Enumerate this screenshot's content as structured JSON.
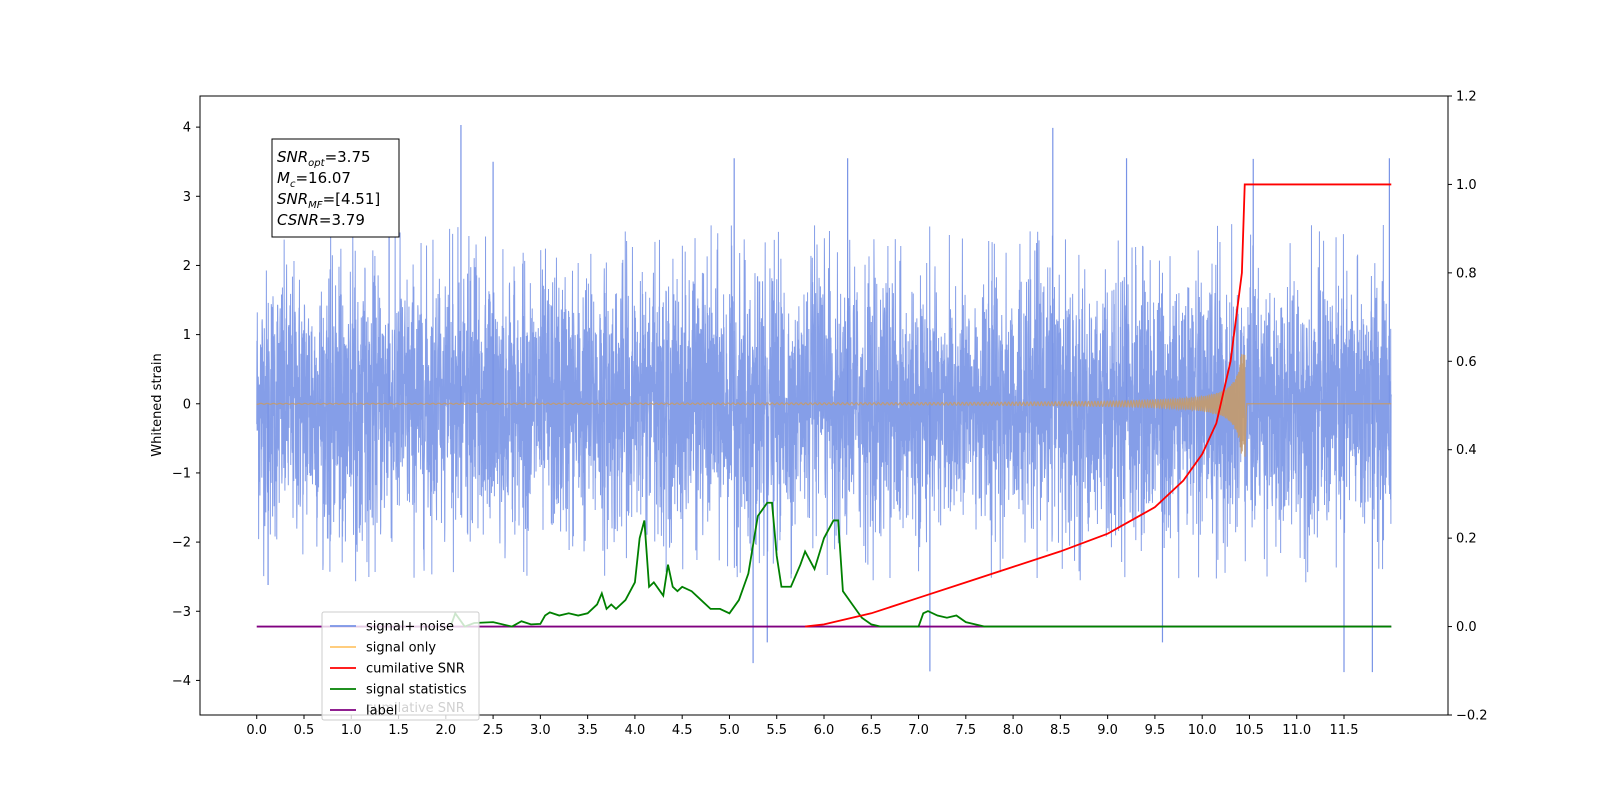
{
  "chart_data": {
    "type": "line",
    "title": "",
    "ylabel": "Whitened strain",
    "xlim": [
      -0.6,
      12.6
    ],
    "ylim": [
      -4.5,
      4.45
    ],
    "y2lim": [
      -0.2,
      1.2
    ],
    "x_ticks": [
      "0.0",
      "0.5",
      "1.0",
      "1.5",
      "2.0",
      "2.5",
      "3.0",
      "3.5",
      "4.0",
      "4.5",
      "5.0",
      "5.5",
      "6.0",
      "6.5",
      "7.0",
      "7.5",
      "8.0",
      "8.5",
      "9.0",
      "9.5",
      "10.0",
      "10.5",
      "11.0",
      "11.5"
    ],
    "x_tick_values": [
      0,
      0.5,
      1,
      1.5,
      2,
      2.5,
      3,
      3.5,
      4,
      4.5,
      5,
      5.5,
      6,
      6.5,
      7,
      7.5,
      8,
      8.5,
      9,
      9.5,
      10,
      10.5,
      11,
      11.5
    ],
    "y_ticks": [
      "4",
      "3",
      "2",
      "1",
      "0",
      "−1",
      "−2",
      "−3",
      "−4"
    ],
    "y_tick_values": [
      4,
      3,
      2,
      1,
      0,
      -1,
      -2,
      -3,
      -4
    ],
    "y2_ticks": [
      "1.2",
      "1.0",
      "0.8",
      "0.6",
      "0.4",
      "0.2",
      "0.0",
      "−0.2"
    ],
    "y2_tick_values": [
      1.2,
      1.0,
      0.8,
      0.6,
      0.4,
      0.2,
      0.0,
      -0.2
    ],
    "grid": false,
    "legend_position": "bottom-left",
    "annotation": {
      "lines": [
        {
          "name": "SNR",
          "sub": "opt",
          "value": "=3.75"
        },
        {
          "name": "M",
          "sub": "c",
          "value": "=16.07"
        },
        {
          "name": "SNR",
          "sub": "MF",
          "value": "=[4.51]"
        },
        {
          "name": "CSNR",
          "sub": "",
          "value": "=3.79"
        }
      ]
    },
    "legend": [
      {
        "label": "signal+ noise",
        "color": "#7893e6"
      },
      {
        "label": "signal only",
        "color": "#ffc66b"
      },
      {
        "label": "cumilative SNR",
        "color": "#ff0000"
      },
      {
        "label": "signal statistics",
        "color": "#008000"
      },
      {
        "label": "label",
        "color": "#800080"
      }
    ],
    "legend_hidden_text": "cumilative SNR",
    "series": [
      {
        "name": "signal+ noise",
        "color": "#7893e6",
        "x_range": [
          0,
          12
        ],
        "envelope": [
          -2.6,
          2.6
        ],
        "outliers": [
          {
            "x": 2.16,
            "y": 4.03
          },
          {
            "x": 8.42,
            "y": 3.99
          },
          {
            "x": 10.54,
            "y": 3.54
          },
          {
            "x": 5.25,
            "y": -3.75
          },
          {
            "x": 7.12,
            "y": -3.87
          },
          {
            "x": 11.5,
            "y": -3.88
          },
          {
            "x": 11.8,
            "y": -3.88
          },
          {
            "x": 9.58,
            "y": -3.45
          },
          {
            "x": 5.4,
            "y": -3.45
          },
          {
            "x": 0.12,
            "y": -2.62
          },
          {
            "x": 1.4,
            "y": 3.3
          },
          {
            "x": 2.5,
            "y": 3.5
          },
          {
            "x": 5.05,
            "y": 3.55
          },
          {
            "x": 6.25,
            "y": 3.55
          },
          {
            "x": 9.2,
            "y": 3.55
          },
          {
            "x": 11.98,
            "y": 3.55
          }
        ]
      },
      {
        "name": "signal only",
        "color": "#c49a6c",
        "x_range": [
          0,
          12
        ],
        "merger_x": 10.45,
        "peak_amplitude": 0.72
      },
      {
        "name": "cumilative SNR",
        "color": "#ff0000",
        "axis": "right",
        "x": [
          5.8,
          6.0,
          6.5,
          7.0,
          7.5,
          8.0,
          8.5,
          9.0,
          9.5,
          9.8,
          10.0,
          10.15,
          10.3,
          10.42,
          10.45,
          10.5,
          12.0
        ],
        "y": [
          0.0,
          0.005,
          0.03,
          0.065,
          0.1,
          0.135,
          0.17,
          0.21,
          0.27,
          0.33,
          0.39,
          0.46,
          0.6,
          0.8,
          1.0,
          1.0,
          1.0
        ]
      },
      {
        "name": "signal statistics",
        "color": "#008000",
        "axis": "right",
        "x": [
          2.05,
          2.1,
          2.2,
          2.3,
          2.5,
          2.7,
          2.8,
          2.9,
          3.0,
          3.05,
          3.1,
          3.2,
          3.3,
          3.4,
          3.5,
          3.6,
          3.65,
          3.7,
          3.75,
          3.8,
          3.9,
          4.0,
          4.05,
          4.1,
          4.15,
          4.2,
          4.3,
          4.35,
          4.4,
          4.45,
          4.5,
          4.6,
          4.7,
          4.8,
          4.9,
          5.0,
          5.1,
          5.2,
          5.3,
          5.4,
          5.45,
          5.5,
          5.55,
          5.65,
          5.75,
          5.8,
          5.9,
          6.0,
          6.1,
          6.15,
          6.2,
          6.3,
          6.4,
          6.5,
          6.6,
          6.7,
          7.0,
          7.05,
          7.1,
          7.2,
          7.3,
          7.4,
          7.5,
          7.6,
          7.7,
          7.8,
          12.0
        ],
        "y": [
          0.0,
          0.03,
          0.0,
          0.008,
          0.01,
          0.0,
          0.012,
          0.005,
          0.006,
          0.025,
          0.032,
          0.025,
          0.03,
          0.025,
          0.03,
          0.05,
          0.075,
          0.04,
          0.05,
          0.04,
          0.06,
          0.1,
          0.2,
          0.24,
          0.09,
          0.1,
          0.07,
          0.14,
          0.09,
          0.08,
          0.09,
          0.08,
          0.06,
          0.04,
          0.04,
          0.03,
          0.06,
          0.12,
          0.25,
          0.28,
          0.28,
          0.16,
          0.09,
          0.09,
          0.14,
          0.17,
          0.13,
          0.2,
          0.24,
          0.24,
          0.08,
          0.05,
          0.02,
          0.005,
          0.0,
          0.0,
          0.0,
          0.03,
          0.035,
          0.025,
          0.02,
          0.025,
          0.01,
          0.005,
          0.0,
          0.0,
          0.0
        ]
      },
      {
        "name": "label",
        "color": "#800080",
        "axis": "right",
        "x": [
          0,
          12
        ],
        "y": [
          0.0,
          0.0
        ]
      }
    ]
  }
}
